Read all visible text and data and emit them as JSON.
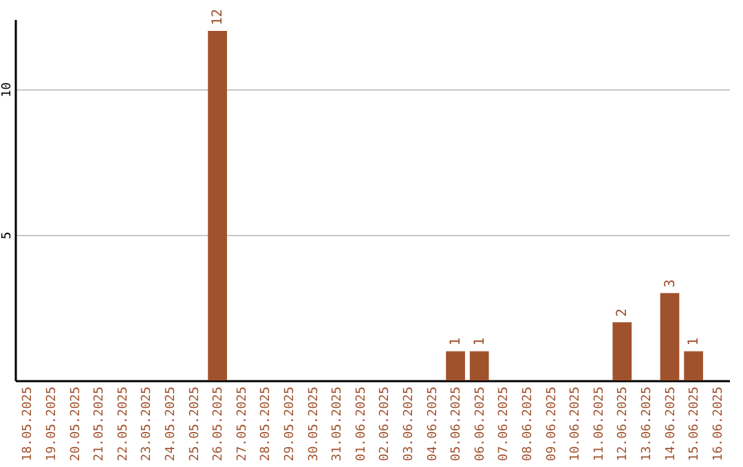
{
  "chart_data": {
    "type": "bar",
    "categories": [
      "18.05.2025",
      "19.05.2025",
      "20.05.2025",
      "21.05.2025",
      "22.05.2025",
      "23.05.2025",
      "24.05.2025",
      "25.05.2025",
      "26.05.2025",
      "27.05.2025",
      "28.05.2025",
      "29.05.2025",
      "30.05.2025",
      "31.05.2025",
      "01.06.2025",
      "02.06.2025",
      "03.06.2025",
      "04.06.2025",
      "05.06.2025",
      "06.06.2025",
      "07.06.2025",
      "08.06.2025",
      "09.06.2025",
      "10.06.2025",
      "11.06.2025",
      "12.06.2025",
      "13.06.2025",
      "14.06.2025",
      "15.06.2025",
      "16.06.2025"
    ],
    "values": [
      0,
      0,
      0,
      0,
      0,
      0,
      0,
      0,
      12,
      0,
      0,
      0,
      0,
      0,
      0,
      0,
      0,
      0,
      1,
      1,
      0,
      0,
      0,
      0,
      0,
      2,
      0,
      3,
      1,
      0
    ],
    "value_labels": [
      null,
      null,
      null,
      null,
      null,
      null,
      null,
      null,
      "12",
      null,
      null,
      null,
      null,
      null,
      null,
      null,
      null,
      null,
      "1",
      "1",
      null,
      null,
      null,
      null,
      null,
      "2",
      null,
      "3",
      "1",
      null
    ],
    "color": "#a0522d",
    "ylim": [
      0,
      12.4
    ],
    "yticks": [
      5,
      10
    ],
    "grid": "y"
  }
}
